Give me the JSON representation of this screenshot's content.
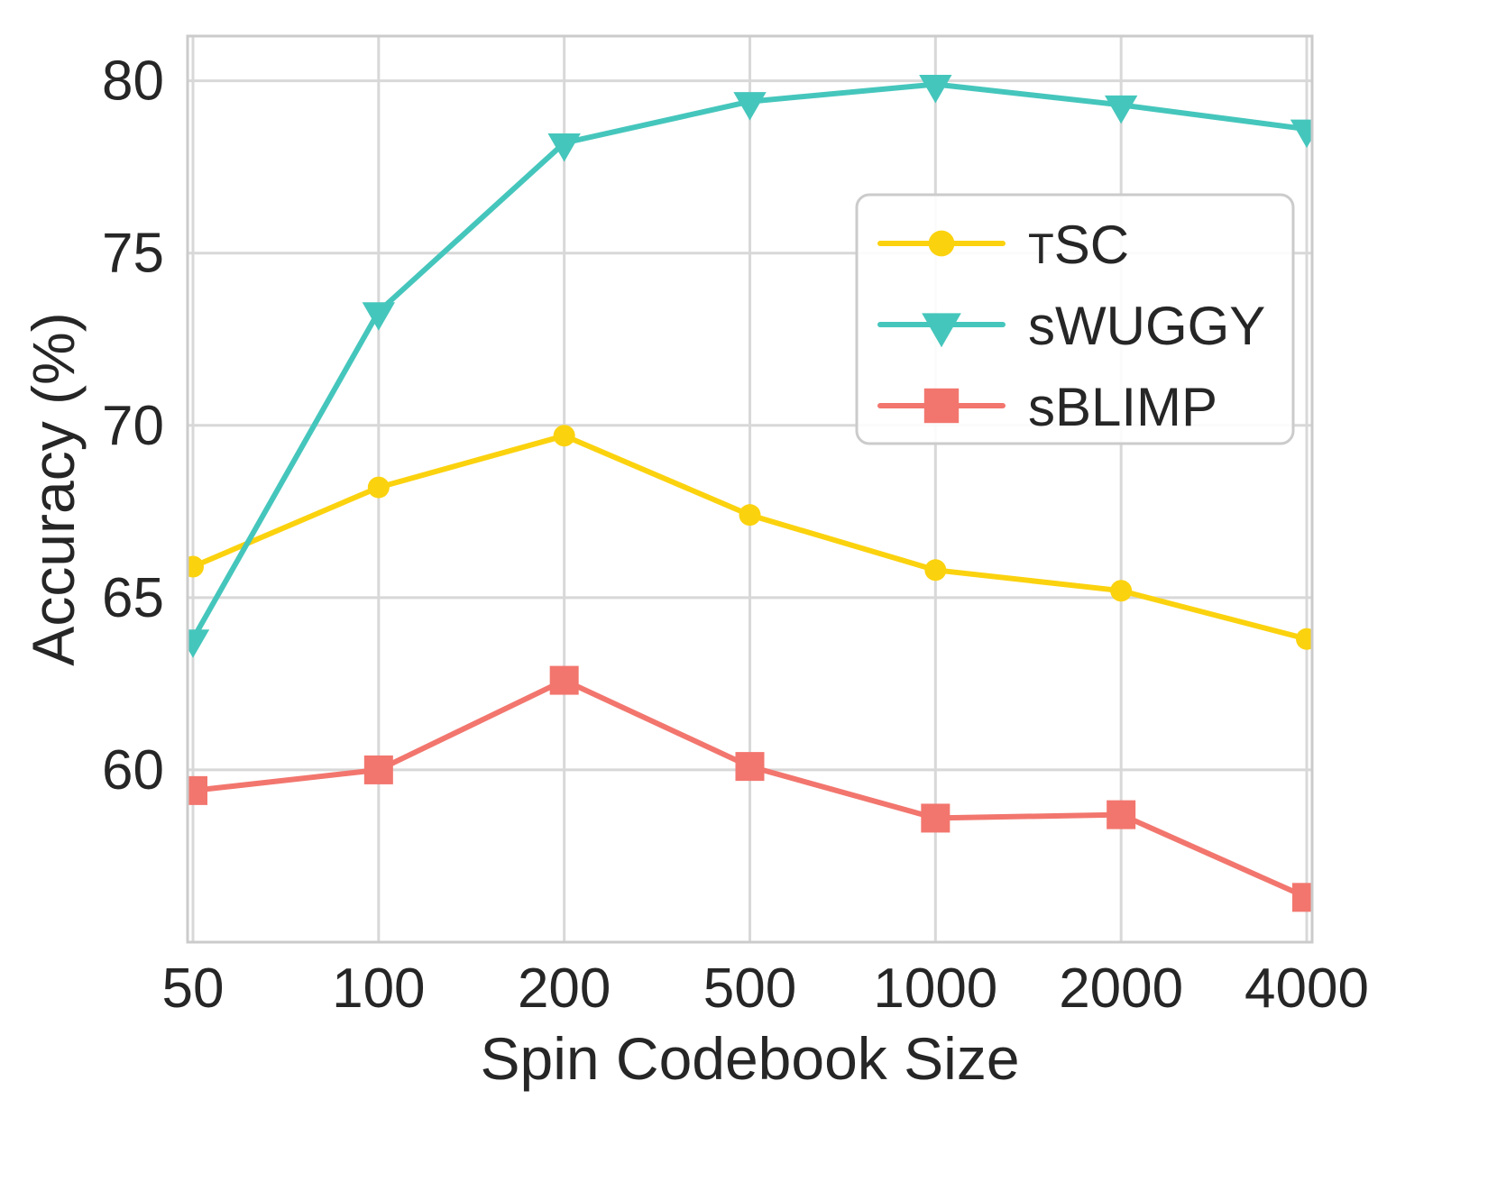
{
  "chart_data": {
    "type": "line",
    "title": "",
    "xlabel": "Spin Codebook Size",
    "ylabel": "Accuracy (%)",
    "x_tick_labels": [
      "50",
      "100",
      "200",
      "500",
      "1000",
      "2000",
      "4000"
    ],
    "y_ticks": [
      60,
      65,
      70,
      75,
      80
    ],
    "ylim": [
      55.0,
      81.3
    ],
    "grid": true,
    "legend_position": "upper right",
    "series": [
      {
        "name": "TSC",
        "label_parts": [
          {
            "text": "T",
            "small": true
          },
          {
            "text": "SC",
            "small": false
          }
        ],
        "marker": "circle",
        "color": "#FBD20E",
        "values": [
          65.9,
          68.2,
          69.7,
          67.4,
          65.8,
          65.2,
          63.8
        ]
      },
      {
        "name": "sWUGGY",
        "marker": "triangle-down",
        "color": "#45C6BC",
        "values": [
          63.8,
          73.3,
          78.2,
          79.4,
          79.9,
          79.3,
          78.6
        ]
      },
      {
        "name": "sBLIMP",
        "marker": "square",
        "color": "#F2766E",
        "values": [
          59.4,
          60.0,
          62.6,
          60.1,
          58.6,
          58.7,
          56.3
        ]
      }
    ],
    "colors": {
      "grid": "#D8D8D8",
      "spine": "#CBCBCB",
      "text": "#262626",
      "background": "#FFFFFF"
    }
  }
}
